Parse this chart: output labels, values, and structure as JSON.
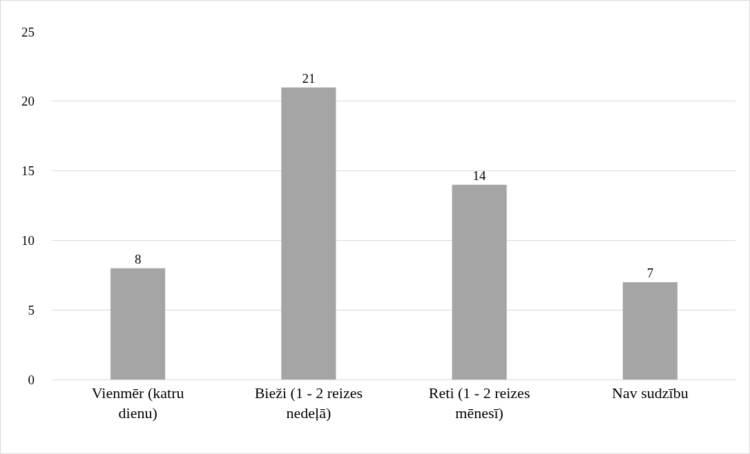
{
  "chart_data": {
    "type": "bar",
    "categories": [
      "Vienmēr (katru dienu)",
      "Bieži (1 - 2 reizes nedeļā)",
      "Reti (1 - 2 reizes mēnesī)",
      "Nav sudzību"
    ],
    "values": [
      8,
      21,
      14,
      7
    ],
    "color": "#a5a5a5",
    "ylim": [
      0,
      25
    ],
    "yticks": [
      0,
      5,
      10,
      15,
      20,
      25
    ],
    "grid": "y",
    "data_labels": true
  }
}
